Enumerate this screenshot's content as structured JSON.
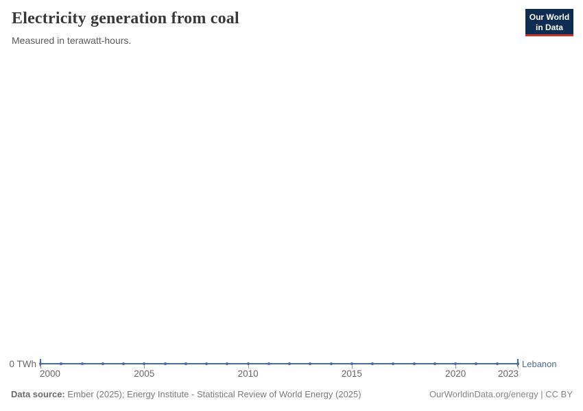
{
  "header": {
    "title": "Electricity generation from coal",
    "subtitle": "Measured in terawatt-hours."
  },
  "logo": {
    "line1": "Our World",
    "line2": "in Data",
    "bg_color": "#0e2c52",
    "accent_color": "#c7352c"
  },
  "chart_data": {
    "type": "line",
    "title": "Electricity generation from coal",
    "subtitle": "Measured in terawatt-hours.",
    "unit": "terawatt-hours",
    "x": [
      2000,
      2001,
      2002,
      2003,
      2004,
      2005,
      2006,
      2007,
      2008,
      2009,
      2010,
      2011,
      2012,
      2013,
      2014,
      2015,
      2016,
      2017,
      2018,
      2019,
      2020,
      2021,
      2022,
      2023
    ],
    "series": [
      {
        "name": "Lebanon",
        "color": "#4C6A9C",
        "values": [
          0,
          0,
          0,
          0,
          0,
          0,
          0,
          0,
          0,
          0,
          0,
          0,
          0,
          0,
          0,
          0,
          0,
          0,
          0,
          0,
          0,
          0,
          0,
          0
        ]
      }
    ],
    "x_tick_labels": [
      2000,
      2005,
      2010,
      2015,
      2020,
      2023
    ],
    "y_tick_labels": [
      "0 TWh"
    ],
    "xlim": [
      2000,
      2023
    ],
    "y_min": 0,
    "grid": false,
    "marker": "circle",
    "legend_position": "end-of-line"
  },
  "footer": {
    "data_source_label": "Data source:",
    "data_source_value": "Ember (2025); Energy Institute - Statistical Review of World Energy (2025)",
    "credit": "OurWorldinData.org/energy | CC BY"
  },
  "colors": {
    "series_blue": "#4C6A9C",
    "tick_label_gray": "#666666",
    "axis_tick_gray": "#999999",
    "title_color": "#383838",
    "subtitle_color": "#5b5b5b",
    "footer_gray": "#7a7a7a"
  }
}
